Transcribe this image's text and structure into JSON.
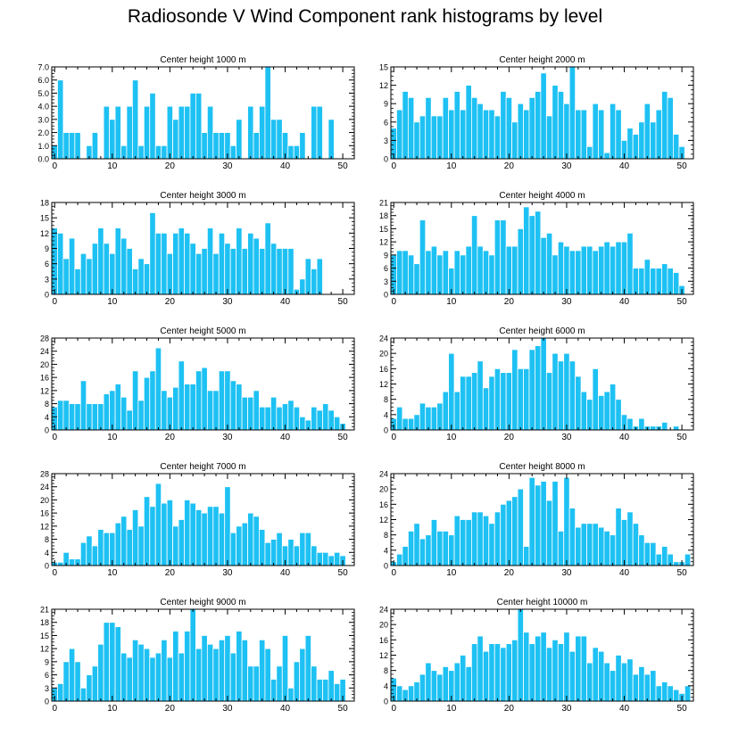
{
  "figure": {
    "title": "Radiosonde V Wind Component rank histograms by level"
  },
  "style": {
    "bar_color": "#1ec1f3",
    "bar_edge_color": "#ffffff",
    "axis_color": "#000000"
  },
  "chart_data": [
    {
      "type": "bar",
      "title": "Center height 1000 m",
      "xlim": [
        -0.5,
        52
      ],
      "ylim": [
        0,
        7
      ],
      "xticks": [
        "0",
        "10",
        "20",
        "30",
        "40",
        "50"
      ],
      "yticks": [
        "0.0",
        "1.0",
        "2.0",
        "3.0",
        "4.0",
        "5.0",
        "6.0",
        "7.0"
      ],
      "x": [
        0,
        1,
        2,
        3,
        4,
        5,
        6,
        7,
        8,
        9,
        10,
        11,
        12,
        13,
        14,
        15,
        16,
        17,
        18,
        19,
        20,
        21,
        22,
        23,
        24,
        25,
        26,
        27,
        28,
        29,
        30,
        31,
        32,
        33,
        34,
        35,
        36,
        37,
        38,
        39,
        40,
        41,
        42,
        43,
        44,
        45,
        46,
        47,
        48,
        49,
        50,
        51
      ],
      "values": [
        1,
        6,
        2,
        2,
        2,
        0,
        1,
        2,
        0,
        4,
        3,
        4,
        1,
        4,
        6,
        1,
        4,
        5,
        1,
        1,
        4,
        3,
        4,
        4,
        5,
        5,
        2,
        4,
        2,
        2,
        2,
        1,
        3,
        0,
        4,
        2,
        4,
        7,
        3,
        3,
        2,
        1,
        1,
        2,
        0,
        4,
        4,
        0,
        3,
        0,
        0,
        0
      ]
    },
    {
      "type": "bar",
      "title": "Center height 2000 m",
      "xlim": [
        -0.5,
        52
      ],
      "ylim": [
        0,
        15
      ],
      "xticks": [
        "0",
        "10",
        "20",
        "30",
        "40",
        "50"
      ],
      "yticks": [
        "0",
        "3",
        "6",
        "9",
        "12",
        "15"
      ],
      "x": [
        0,
        1,
        2,
        3,
        4,
        5,
        6,
        7,
        8,
        9,
        10,
        11,
        12,
        13,
        14,
        15,
        16,
        17,
        18,
        19,
        20,
        21,
        22,
        23,
        24,
        25,
        26,
        27,
        28,
        29,
        30,
        31,
        32,
        33,
        34,
        35,
        36,
        37,
        38,
        39,
        40,
        41,
        42,
        43,
        44,
        45,
        46,
        47,
        48,
        49,
        50,
        51
      ],
      "values": [
        5,
        8,
        11,
        10,
        6,
        7,
        10,
        7,
        7,
        10,
        8,
        11,
        8,
        12,
        10,
        9,
        8,
        8,
        7,
        11,
        10,
        6,
        9,
        8,
        10,
        11,
        14,
        7,
        12,
        11,
        9,
        15,
        8,
        8,
        2,
        9,
        8,
        1,
        9,
        8,
        3,
        5,
        4,
        6,
        9,
        6,
        8,
        11,
        10,
        4,
        2,
        0
      ]
    },
    {
      "type": "bar",
      "title": "Center height 3000 m",
      "xlim": [
        -0.5,
        52
      ],
      "ylim": [
        0,
        18
      ],
      "xticks": [
        "0",
        "10",
        "20",
        "30",
        "40",
        "50"
      ],
      "yticks": [
        "0",
        "3",
        "6",
        "9",
        "12",
        "15",
        "18"
      ],
      "x": [
        0,
        1,
        2,
        3,
        4,
        5,
        6,
        7,
        8,
        9,
        10,
        11,
        12,
        13,
        14,
        15,
        16,
        17,
        18,
        19,
        20,
        21,
        22,
        23,
        24,
        25,
        26,
        27,
        28,
        29,
        30,
        31,
        32,
        33,
        34,
        35,
        36,
        37,
        38,
        39,
        40,
        41,
        42,
        43,
        44,
        45,
        46,
        47,
        48,
        49,
        50,
        51
      ],
      "values": [
        13,
        12,
        7,
        11,
        5,
        8,
        7,
        10,
        13,
        10,
        8,
        13,
        11,
        9,
        5,
        7,
        6,
        16,
        12,
        12,
        8,
        12,
        13,
        12,
        10,
        8,
        9,
        13,
        8,
        12,
        10,
        9,
        13,
        9,
        12,
        11,
        9,
        14,
        10,
        9,
        9,
        9,
        1,
        3,
        7,
        5,
        7,
        0,
        0,
        0,
        0,
        0
      ]
    },
    {
      "type": "bar",
      "title": "Center height 4000 m",
      "xlim": [
        -0.5,
        52
      ],
      "ylim": [
        0,
        21
      ],
      "xticks": [
        "0",
        "10",
        "20",
        "30",
        "40",
        "50"
      ],
      "yticks": [
        "0",
        "3",
        "6",
        "9",
        "12",
        "15",
        "18",
        "21"
      ],
      "x": [
        0,
        1,
        2,
        3,
        4,
        5,
        6,
        7,
        8,
        9,
        10,
        11,
        12,
        13,
        14,
        15,
        16,
        17,
        18,
        19,
        20,
        21,
        22,
        23,
        24,
        25,
        26,
        27,
        28,
        29,
        30,
        31,
        32,
        33,
        34,
        35,
        36,
        37,
        38,
        39,
        40,
        41,
        42,
        43,
        44,
        45,
        46,
        47,
        48,
        49,
        50,
        51
      ],
      "values": [
        9,
        10,
        10,
        9,
        7,
        17,
        10,
        11,
        9,
        10,
        6,
        10,
        9,
        11,
        18,
        11,
        10,
        9,
        17,
        17,
        11,
        11,
        15,
        20,
        18,
        19,
        13,
        14,
        9,
        12,
        11,
        10,
        10,
        11,
        11,
        10,
        11,
        12,
        11,
        12,
        12,
        14,
        6,
        6,
        8,
        6,
        6,
        7,
        6,
        5,
        2,
        0
      ]
    },
    {
      "type": "bar",
      "title": "Center height 5000 m",
      "xlim": [
        -0.5,
        52
      ],
      "ylim": [
        0,
        28
      ],
      "xticks": [
        "0",
        "10",
        "20",
        "30",
        "40",
        "50"
      ],
      "yticks": [
        "0",
        "4",
        "8",
        "12",
        "16",
        "20",
        "24",
        "28"
      ],
      "x": [
        0,
        1,
        2,
        3,
        4,
        5,
        6,
        7,
        8,
        9,
        10,
        11,
        12,
        13,
        14,
        15,
        16,
        17,
        18,
        19,
        20,
        21,
        22,
        23,
        24,
        25,
        26,
        27,
        28,
        29,
        30,
        31,
        32,
        33,
        34,
        35,
        36,
        37,
        38,
        39,
        40,
        41,
        42,
        43,
        44,
        45,
        46,
        47,
        48,
        49,
        50,
        51
      ],
      "values": [
        7,
        9,
        9,
        8,
        8,
        15,
        8,
        8,
        8,
        11,
        12,
        14,
        10,
        6,
        18,
        9,
        16,
        18,
        25,
        12,
        10,
        13,
        21,
        14,
        14,
        18,
        19,
        12,
        12,
        18,
        18,
        15,
        14,
        10,
        10,
        12,
        7,
        7,
        10,
        7,
        8,
        9,
        7,
        4,
        3,
        7,
        6,
        8,
        6,
        4,
        2,
        0
      ]
    },
    {
      "type": "bar",
      "title": "Center height 6000 m",
      "xlim": [
        -0.5,
        52
      ],
      "ylim": [
        0,
        24
      ],
      "xticks": [
        "0",
        "10",
        "20",
        "30",
        "40",
        "50"
      ],
      "yticks": [
        "0",
        "4",
        "8",
        "12",
        "16",
        "20",
        "24"
      ],
      "x": [
        0,
        1,
        2,
        3,
        4,
        5,
        6,
        7,
        8,
        9,
        10,
        11,
        12,
        13,
        14,
        15,
        16,
        17,
        18,
        19,
        20,
        21,
        22,
        23,
        24,
        25,
        26,
        27,
        28,
        29,
        30,
        31,
        32,
        33,
        34,
        35,
        36,
        37,
        38,
        39,
        40,
        41,
        42,
        43,
        44,
        45,
        46,
        47,
        48,
        49,
        50,
        51
      ],
      "values": [
        3,
        6,
        3,
        3,
        4,
        7,
        6,
        6,
        7,
        10,
        20,
        10,
        14,
        14,
        15,
        18,
        11,
        14,
        16,
        15,
        15,
        21,
        16,
        16,
        21,
        22,
        24,
        15,
        20,
        18,
        20,
        18,
        14,
        10,
        8,
        16,
        9,
        10,
        12,
        8,
        4,
        3,
        1,
        3,
        1,
        1,
        1,
        2,
        0,
        1,
        0,
        0
      ]
    },
    {
      "type": "bar",
      "title": "Center height 7000 m",
      "xlim": [
        -0.5,
        52
      ],
      "ylim": [
        0,
        28
      ],
      "xticks": [
        "0",
        "10",
        "20",
        "30",
        "40",
        "50"
      ],
      "yticks": [
        "0",
        "4",
        "8",
        "12",
        "16",
        "20",
        "24",
        "28"
      ],
      "x": [
        0,
        1,
        2,
        3,
        4,
        5,
        6,
        7,
        8,
        9,
        10,
        11,
        12,
        13,
        14,
        15,
        16,
        17,
        18,
        19,
        20,
        21,
        22,
        23,
        24,
        25,
        26,
        27,
        28,
        29,
        30,
        31,
        32,
        33,
        34,
        35,
        36,
        37,
        38,
        39,
        40,
        41,
        42,
        43,
        44,
        45,
        46,
        47,
        48,
        49,
        50,
        51
      ],
      "values": [
        1,
        1,
        4,
        2,
        2,
        7,
        9,
        6,
        11,
        10,
        10,
        13,
        15,
        11,
        17,
        12,
        21,
        18,
        25,
        19,
        20,
        12,
        14,
        20,
        19,
        17,
        16,
        18,
        18,
        16,
        24,
        10,
        12,
        13,
        16,
        15,
        11,
        7,
        8,
        10,
        6,
        8,
        6,
        10,
        10,
        6,
        4,
        4,
        3,
        4,
        3,
        0
      ]
    },
    {
      "type": "bar",
      "title": "Center height 8000 m",
      "xlim": [
        -0.5,
        52
      ],
      "ylim": [
        0,
        24
      ],
      "xticks": [
        "0",
        "10",
        "20",
        "30",
        "40",
        "50"
      ],
      "yticks": [
        "0",
        "4",
        "8",
        "12",
        "16",
        "20",
        "24"
      ],
      "x": [
        0,
        1,
        2,
        3,
        4,
        5,
        6,
        7,
        8,
        9,
        10,
        11,
        12,
        13,
        14,
        15,
        16,
        17,
        18,
        19,
        20,
        21,
        22,
        23,
        24,
        25,
        26,
        27,
        28,
        29,
        30,
        31,
        32,
        33,
        34,
        35,
        36,
        37,
        38,
        39,
        40,
        41,
        42,
        43,
        44,
        45,
        46,
        47,
        48,
        49,
        50,
        51
      ],
      "values": [
        1,
        3,
        5,
        9,
        11,
        7,
        8,
        12,
        9,
        9,
        8,
        13,
        12,
        12,
        14,
        14,
        13,
        11,
        14,
        16,
        17,
        18,
        20,
        5,
        23,
        21,
        22,
        17,
        22,
        9,
        23,
        15,
        10,
        11,
        11,
        11,
        10,
        9,
        8,
        15,
        12,
        14,
        11,
        8,
        6,
        6,
        3,
        5,
        3,
        1,
        1,
        3
      ]
    },
    {
      "type": "bar",
      "title": "Center height 9000 m",
      "xlim": [
        -0.5,
        52
      ],
      "ylim": [
        0,
        21
      ],
      "xticks": [
        "0",
        "10",
        "20",
        "30",
        "40",
        "50"
      ],
      "yticks": [
        "0",
        "3",
        "6",
        "9",
        "12",
        "15",
        "18",
        "21"
      ],
      "x": [
        0,
        1,
        2,
        3,
        4,
        5,
        6,
        7,
        8,
        9,
        10,
        11,
        12,
        13,
        14,
        15,
        16,
        17,
        18,
        19,
        20,
        21,
        22,
        23,
        24,
        25,
        26,
        27,
        28,
        29,
        30,
        31,
        32,
        33,
        34,
        35,
        36,
        37,
        38,
        39,
        40,
        41,
        42,
        43,
        44,
        45,
        46,
        47,
        48,
        49,
        50,
        51
      ],
      "values": [
        3,
        4,
        9,
        12,
        9,
        3,
        6,
        8,
        13,
        18,
        18,
        17,
        11,
        10,
        14,
        13,
        12,
        10,
        11,
        14,
        10,
        16,
        11,
        16,
        21,
        12,
        15,
        13,
        12,
        14,
        15,
        11,
        16,
        14,
        8,
        8,
        14,
        12,
        5,
        8,
        15,
        3,
        9,
        12,
        15,
        8,
        5,
        5,
        7,
        4,
        5,
        0
      ]
    },
    {
      "type": "bar",
      "title": "Center height 10000 m",
      "xlim": [
        -0.5,
        52
      ],
      "ylim": [
        0,
        24
      ],
      "xticks": [
        "0",
        "10",
        "20",
        "30",
        "40",
        "50"
      ],
      "yticks": [
        "0",
        "4",
        "8",
        "12",
        "16",
        "20",
        "24"
      ],
      "x": [
        0,
        1,
        2,
        3,
        4,
        5,
        6,
        7,
        8,
        9,
        10,
        11,
        12,
        13,
        14,
        15,
        16,
        17,
        18,
        19,
        20,
        21,
        22,
        23,
        24,
        25,
        26,
        27,
        28,
        29,
        30,
        31,
        32,
        33,
        34,
        35,
        36,
        37,
        38,
        39,
        40,
        41,
        42,
        43,
        44,
        45,
        46,
        47,
        48,
        49,
        50,
        51
      ],
      "values": [
        6,
        4,
        3,
        4,
        5,
        7,
        10,
        8,
        7,
        9,
        8,
        10,
        12,
        9,
        15,
        17,
        13,
        15,
        15,
        14,
        15,
        16,
        24,
        18,
        15,
        17,
        18,
        14,
        16,
        15,
        18,
        13,
        17,
        17,
        10,
        14,
        13,
        10,
        8,
        12,
        10,
        11,
        7,
        9,
        7,
        8,
        4,
        5,
        4,
        3,
        2,
        4
      ]
    }
  ]
}
